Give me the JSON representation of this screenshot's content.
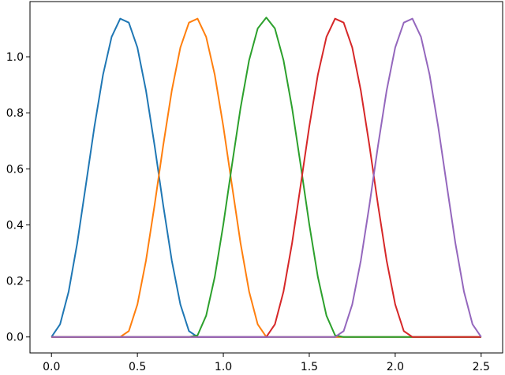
{
  "chart_data": {
    "type": "line",
    "x": [
      0,
      0.05,
      0.1,
      0.15,
      0.2,
      0.25,
      0.3,
      0.35,
      0.4,
      0.45,
      0.5,
      0.55,
      0.6,
      0.65,
      0.7,
      0.75,
      0.8,
      0.85,
      0.9,
      0.95,
      1.0,
      1.05,
      1.1,
      1.15,
      1.2,
      1.25,
      1.3,
      1.35,
      1.4,
      1.45,
      1.5,
      1.55,
      1.6,
      1.65,
      1.7,
      1.75,
      1.8,
      1.85,
      1.9,
      1.95,
      2.0,
      2.05,
      2.1,
      2.15,
      2.2,
      2.25,
      2.3,
      2.35,
      2.4,
      2.45,
      2.5
    ],
    "series": [
      {
        "color": "#1f77b4",
        "values": [
          0,
          0.045,
          0.162,
          0.335,
          0.542,
          0.751,
          0.936,
          1.071,
          1.136,
          1.122,
          1.033,
          0.879,
          0.683,
          0.471,
          0.273,
          0.116,
          0.021,
          0,
          0,
          0,
          0,
          0,
          0,
          0,
          0,
          0,
          0,
          0,
          0,
          0,
          0,
          0,
          0,
          0,
          0,
          0,
          0,
          0,
          0,
          0,
          0,
          0,
          0,
          0,
          0,
          0,
          0,
          0,
          0,
          0,
          0
        ]
      },
      {
        "color": "#ff7f0e",
        "values": [
          0,
          0,
          0,
          0,
          0,
          0,
          0,
          0,
          0,
          0.021,
          0.116,
          0.273,
          0.471,
          0.683,
          0.879,
          1.033,
          1.122,
          1.136,
          1.071,
          0.936,
          0.751,
          0.542,
          0.335,
          0.162,
          0.045,
          0,
          0,
          0,
          0,
          0,
          0,
          0,
          0,
          0,
          0,
          0,
          0,
          0,
          0,
          0,
          0,
          0,
          0,
          0,
          0,
          0,
          0,
          0,
          0,
          0,
          0
        ]
      },
      {
        "color": "#2ca02c",
        "values": [
          0,
          0,
          0,
          0,
          0,
          0,
          0,
          0,
          0,
          0,
          0,
          0,
          0,
          0,
          0,
          0,
          0,
          0.006,
          0.076,
          0.214,
          0.402,
          0.613,
          0.817,
          0.988,
          1.101,
          1.14,
          1.101,
          0.988,
          0.817,
          0.613,
          0.402,
          0.214,
          0.076,
          0.006,
          0,
          0,
          0,
          0,
          0,
          0,
          0,
          0,
          0,
          0,
          0,
          0,
          0,
          0,
          0,
          0,
          0
        ]
      },
      {
        "color": "#d62728",
        "values": [
          0,
          0,
          0,
          0,
          0,
          0,
          0,
          0,
          0,
          0,
          0,
          0,
          0,
          0,
          0,
          0,
          0,
          0,
          0,
          0,
          0,
          0,
          0,
          0,
          0,
          0,
          0.045,
          0.162,
          0.335,
          0.542,
          0.751,
          0.936,
          1.071,
          1.136,
          1.122,
          1.033,
          0.879,
          0.683,
          0.471,
          0.273,
          0.116,
          0.021,
          0,
          0,
          0,
          0,
          0,
          0,
          0,
          0,
          0
        ]
      },
      {
        "color": "#9467bd",
        "values": [
          0,
          0,
          0,
          0,
          0,
          0,
          0,
          0,
          0,
          0,
          0,
          0,
          0,
          0,
          0,
          0,
          0,
          0,
          0,
          0,
          0,
          0,
          0,
          0,
          0,
          0,
          0,
          0,
          0,
          0,
          0,
          0,
          0,
          0,
          0.021,
          0.116,
          0.273,
          0.471,
          0.683,
          0.879,
          1.033,
          1.122,
          1.136,
          1.071,
          0.936,
          0.751,
          0.542,
          0.335,
          0.162,
          0.045,
          0
        ]
      }
    ],
    "xlim": [
      -0.125,
      2.625
    ],
    "ylim": [
      -0.057,
      1.197
    ],
    "xticks": [
      {
        "value": 0,
        "label": "0.0"
      },
      {
        "value": 0.5,
        "label": "0.5"
      },
      {
        "value": 1,
        "label": "1.0"
      },
      {
        "value": 1.5,
        "label": "1.5"
      },
      {
        "value": 2,
        "label": "2.0"
      },
      {
        "value": 2.5,
        "label": "2.5"
      }
    ],
    "yticks": [
      {
        "value": 0,
        "label": "0.0"
      },
      {
        "value": 0.2,
        "label": "0.2"
      },
      {
        "value": 0.4,
        "label": "0.4"
      },
      {
        "value": 0.6,
        "label": "0.6"
      },
      {
        "value": 0.8,
        "label": "0.8"
      },
      {
        "value": 1,
        "label": "1.0"
      }
    ],
    "grid": false
  }
}
